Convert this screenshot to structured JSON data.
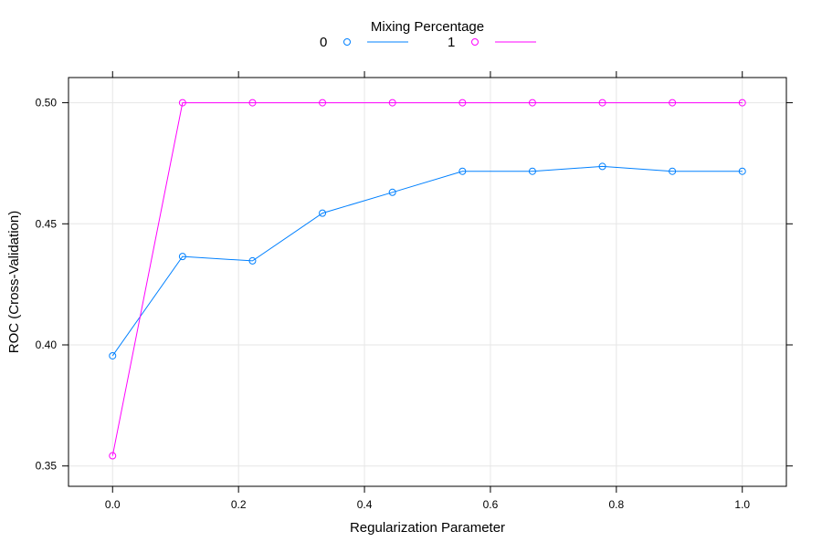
{
  "chart_data": {
    "type": "line",
    "title": "",
    "xlabel": "Regularization Parameter",
    "ylabel": "ROC (Cross-Validation)",
    "legend": {
      "title": "Mixing Percentage",
      "placement": "top-center"
    },
    "x": [
      0.0,
      0.1111,
      0.2222,
      0.3333,
      0.4444,
      0.5556,
      0.6667,
      0.7778,
      0.8889,
      1.0
    ],
    "series": [
      {
        "name": "0",
        "color": "#0080ff",
        "values": [
          0.3955,
          0.4365,
          0.4347,
          0.4544,
          0.463,
          0.4717,
          0.4717,
          0.4737,
          0.4717,
          0.4717
        ]
      },
      {
        "name": "1",
        "color": "#ff00ff",
        "values": [
          0.3542,
          0.5,
          0.5,
          0.5,
          0.5,
          0.5,
          0.5,
          0.5,
          0.5,
          0.5
        ]
      }
    ],
    "xlim": [
      -0.07,
      1.07
    ],
    "ylim": [
      0.3416,
      0.5104
    ],
    "xticks": [
      0.0,
      0.2,
      0.4,
      0.6,
      0.8,
      1.0
    ],
    "xtick_labels": [
      "0.0",
      "0.2",
      "0.4",
      "0.6",
      "0.8",
      "1.0"
    ],
    "yticks": [
      0.35,
      0.4,
      0.45,
      0.5
    ],
    "ytick_labels": [
      "0.35",
      "0.40",
      "0.45",
      "0.50"
    ],
    "grid": true,
    "grid_color": "#e6e6e6",
    "frame_color": "#000000"
  }
}
